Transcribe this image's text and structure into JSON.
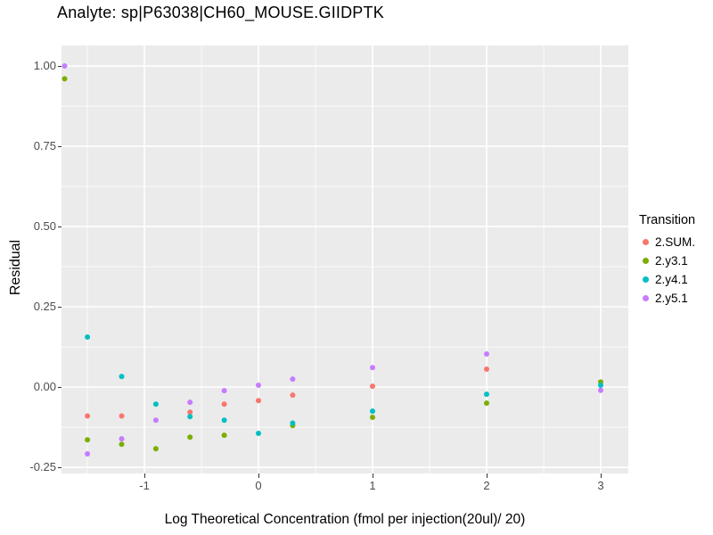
{
  "title": "Analyte: sp|P63038|CH60_MOUSE.GIIDPTK",
  "chart_data": {
    "type": "scatter",
    "title": "Analyte: sp|P63038|CH60_MOUSE.GIIDPTK",
    "xlabel": "Log Theoretical Concentration (fmol per injection(20ul)/ 20)",
    "ylabel": "Residual",
    "legend_title": "Transition",
    "legend_position": "right",
    "grid": true,
    "panel_background": "#EBEBEB",
    "grid_color": "#FFFFFF",
    "tick_label_color": "#4D4D4D",
    "xlim": [
      -1.727,
      3.242
    ],
    "ylim": [
      -0.269,
      1.064
    ],
    "x_ticks": [
      -1,
      0,
      1,
      2,
      3
    ],
    "x_tick_labels": [
      "-1",
      "0",
      "1",
      "2",
      "3"
    ],
    "y_ticks": [
      1.0,
      0.75,
      0.5,
      0.25,
      0.0,
      -0.25
    ],
    "y_tick_labels": [
      "1.00",
      "0.75",
      "0.50",
      "0.25",
      "0.00",
      "-0.25"
    ],
    "x_minor_gridlines": [
      -1.5,
      -0.5,
      0.5,
      1.5,
      2.5
    ],
    "y_minor_gridlines": [
      0.875,
      0.625,
      0.375,
      0.125,
      -0.125
    ],
    "point_radius": 3,
    "series": [
      {
        "name": "2.SUM.",
        "color": "#F8766D",
        "points": [
          [
            -1.5,
            -0.09
          ],
          [
            -1.2,
            -0.09
          ],
          [
            -0.6,
            -0.078
          ],
          [
            -0.3,
            -0.053
          ],
          [
            0,
            -0.042
          ],
          [
            0.3,
            -0.025
          ],
          [
            1,
            0.003
          ],
          [
            2,
            0.056
          ]
        ]
      },
      {
        "name": "2.y3.1",
        "color": "#7CAE00",
        "points": [
          [
            -1.7,
            0.96
          ],
          [
            -1.5,
            -0.164
          ],
          [
            -1.2,
            -0.178
          ],
          [
            -0.9,
            -0.192
          ],
          [
            -0.6,
            -0.156
          ],
          [
            -0.3,
            -0.15
          ],
          [
            0.3,
            -0.12
          ],
          [
            1,
            -0.094
          ],
          [
            2,
            -0.05
          ],
          [
            3,
            0.016
          ]
        ]
      },
      {
        "name": "2.y4.1",
        "color": "#00BFC4",
        "points": [
          [
            -1.5,
            0.156
          ],
          [
            -1.2,
            0.033
          ],
          [
            -0.9,
            -0.053
          ],
          [
            -0.6,
            -0.092
          ],
          [
            -0.3,
            -0.103
          ],
          [
            0,
            -0.144
          ],
          [
            0.3,
            -0.112
          ],
          [
            1,
            -0.075
          ],
          [
            2,
            -0.022
          ],
          [
            3,
            0.006
          ]
        ]
      },
      {
        "name": "2.y5.1",
        "color": "#C77CFF",
        "points": [
          [
            -1.7,
            1.0
          ],
          [
            -1.5,
            -0.208
          ],
          [
            -1.2,
            -0.161
          ],
          [
            -0.9,
            -0.103
          ],
          [
            -0.6,
            -0.047
          ],
          [
            -0.3,
            -0.011
          ],
          [
            0,
            0.006
          ],
          [
            0.3,
            0.025
          ],
          [
            1,
            0.061
          ],
          [
            2,
            0.103
          ],
          [
            3,
            -0.01
          ]
        ]
      }
    ]
  }
}
